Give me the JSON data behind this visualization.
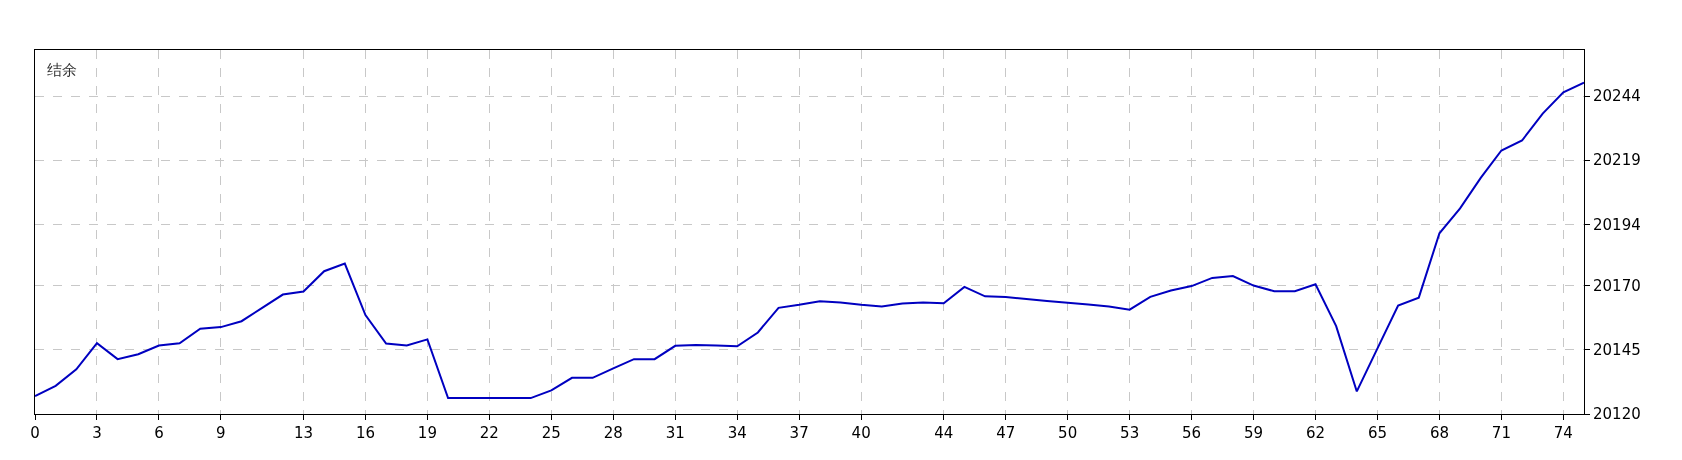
{
  "chart_data": {
    "type": "line",
    "title": "结余",
    "x": [
      0,
      1,
      2,
      3,
      4,
      5,
      6,
      7,
      8,
      9,
      10,
      11,
      12,
      13,
      14,
      15,
      16,
      17,
      18,
      19,
      20,
      21,
      22,
      23,
      24,
      25,
      26,
      27,
      28,
      29,
      30,
      31,
      32,
      33,
      34,
      35,
      36,
      37,
      38,
      39,
      40,
      41,
      42,
      43,
      44,
      45,
      46,
      47,
      48,
      49,
      50,
      51,
      52,
      53,
      54,
      55,
      56,
      57,
      58,
      59,
      60,
      61,
      62,
      63,
      64,
      65,
      66,
      67,
      68,
      69,
      70,
      71,
      72,
      73,
      74,
      75
    ],
    "series": [
      {
        "color": "#0000c0",
        "values": [
          20127,
          20131,
          20137.4,
          20147.6,
          20141.4,
          20143.3,
          20146.7,
          20147.6,
          20153.3,
          20153.9,
          20156.2,
          20161.4,
          20166.6,
          20167.8,
          20175.7,
          20178.7,
          20158.6,
          20147.5,
          20146.7,
          20149.1,
          20126.2,
          20126.2,
          20126.2,
          20126.2,
          20126.2,
          20129.2,
          20134.1,
          20134.1,
          20137.8,
          20141.4,
          20141.4,
          20146.6,
          20146.9,
          20146.7,
          20146.4,
          20151.8,
          20161.4,
          20162.6,
          20164,
          20163.5,
          20162.6,
          20161.9,
          20163.1,
          20163.5,
          20163.2,
          20169.6,
          20165.9,
          20165.6,
          20164.9,
          20164.1,
          20163.4,
          20162.7,
          20161.9,
          20160.7,
          20165.7,
          20168.2,
          20169.9,
          20173.1,
          20173.8,
          20170.1,
          20167.9,
          20167.9,
          20170.6,
          20154.3,
          20128.8,
          20145.6,
          20162.3,
          20165.4,
          20190.5,
          20200.2,
          20212.1,
          20222.8,
          20226.7,
          20237.2,
          20245.5,
          20249.3
        ]
      }
    ],
    "xlim": [
      0,
      75
    ],
    "xticks": [
      0,
      3,
      6,
      9,
      13,
      16,
      19,
      22,
      25,
      28,
      31,
      34,
      37,
      40,
      44,
      47,
      50,
      53,
      56,
      59,
      62,
      65,
      68,
      71,
      74
    ],
    "ylim": [
      20120,
      20262
    ],
    "yticks": [
      20120,
      20145,
      20170,
      20194,
      20219,
      20244
    ],
    "grid": true,
    "line_style": "solid",
    "marker": "none"
  }
}
